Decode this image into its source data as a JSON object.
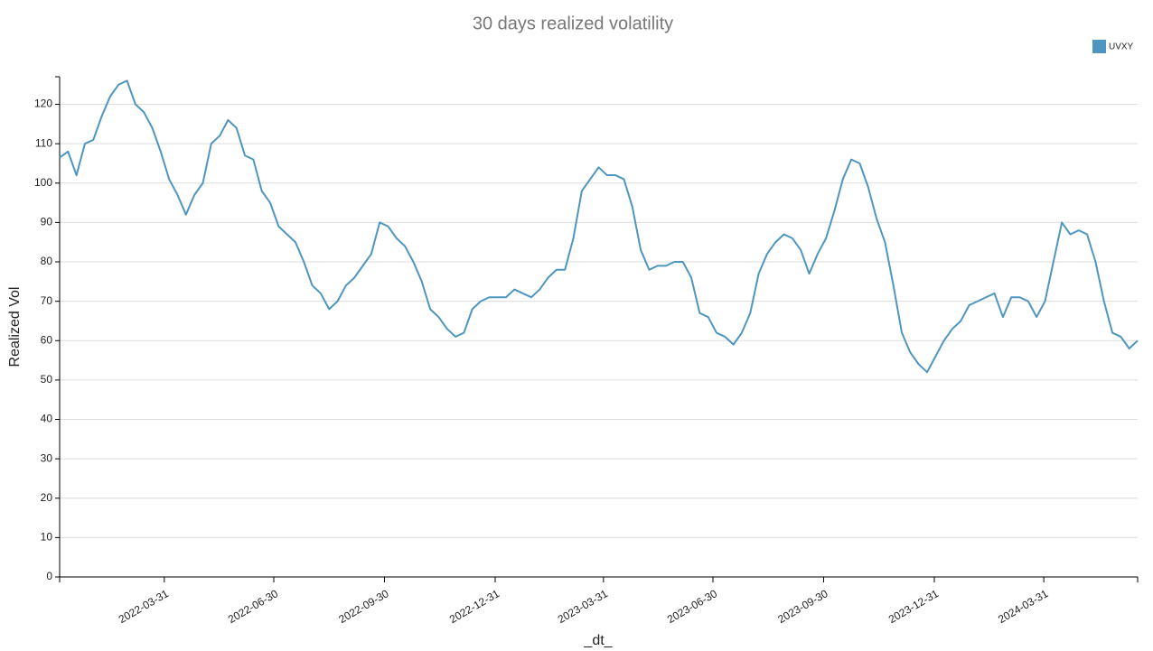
{
  "chart_data": {
    "type": "line",
    "title": "30 days realized volatility",
    "x_label": "_dt_",
    "y_label": "Realized Vol",
    "x": [
      "2022-01-03",
      "2022-01-10",
      "2022-01-17",
      "2022-01-24",
      "2022-01-31",
      "2022-02-07",
      "2022-02-14",
      "2022-02-21",
      "2022-02-28",
      "2022-03-07",
      "2022-03-14",
      "2022-03-21",
      "2022-03-28",
      "2022-04-04",
      "2022-04-11",
      "2022-04-18",
      "2022-04-25",
      "2022-05-02",
      "2022-05-09",
      "2022-05-16",
      "2022-05-23",
      "2022-05-30",
      "2022-06-06",
      "2022-06-13",
      "2022-06-20",
      "2022-06-27",
      "2022-07-04",
      "2022-07-11",
      "2022-07-18",
      "2022-07-25",
      "2022-08-01",
      "2022-08-08",
      "2022-08-15",
      "2022-08-22",
      "2022-08-29",
      "2022-09-05",
      "2022-09-12",
      "2022-09-19",
      "2022-09-26",
      "2022-10-03",
      "2022-10-10",
      "2022-10-17",
      "2022-10-24",
      "2022-10-31",
      "2022-11-07",
      "2022-11-14",
      "2022-11-21",
      "2022-11-28",
      "2022-12-05",
      "2022-12-12",
      "2022-12-19",
      "2022-12-26",
      "2023-01-02",
      "2023-01-09",
      "2023-01-16",
      "2023-01-23",
      "2023-01-30",
      "2023-02-06",
      "2023-02-13",
      "2023-02-20",
      "2023-02-27",
      "2023-03-06",
      "2023-03-13",
      "2023-03-20",
      "2023-03-27",
      "2023-04-03",
      "2023-04-10",
      "2023-04-17",
      "2023-04-24",
      "2023-05-01",
      "2023-05-08",
      "2023-05-15",
      "2023-05-22",
      "2023-05-29",
      "2023-06-05",
      "2023-06-12",
      "2023-06-19",
      "2023-06-26",
      "2023-07-03",
      "2023-07-10",
      "2023-07-17",
      "2023-07-24",
      "2023-07-31",
      "2023-08-07",
      "2023-08-14",
      "2023-08-21",
      "2023-08-28",
      "2023-09-04",
      "2023-09-11",
      "2023-09-18",
      "2023-09-25",
      "2023-10-02",
      "2023-10-09",
      "2023-10-16",
      "2023-10-23",
      "2023-10-30",
      "2023-11-06",
      "2023-11-13",
      "2023-11-20",
      "2023-11-27",
      "2023-12-04",
      "2023-12-11",
      "2023-12-18",
      "2023-12-25",
      "2024-01-01",
      "2024-01-08",
      "2024-01-15",
      "2024-01-22",
      "2024-01-29",
      "2024-02-05",
      "2024-02-12",
      "2024-02-19",
      "2024-02-26",
      "2024-03-04",
      "2024-03-11",
      "2024-03-18",
      "2024-03-25",
      "2024-04-01",
      "2024-04-08",
      "2024-04-15",
      "2024-04-22",
      "2024-04-29",
      "2024-05-06",
      "2024-05-13",
      "2024-05-20",
      "2024-05-27",
      "2024-06-03",
      "2024-06-10",
      "2024-06-17"
    ],
    "series": [
      {
        "name": "UVXY",
        "color": "#4e96c0",
        "values": [
          106.5,
          108,
          102,
          110,
          111,
          117,
          122,
          125,
          126,
          120,
          118,
          114,
          108,
          101,
          97,
          92,
          97,
          100,
          110,
          112,
          116,
          114,
          107,
          106,
          98,
          95,
          89,
          87,
          85,
          80,
          74,
          72,
          68,
          70,
          74,
          76,
          79,
          82,
          90,
          89,
          86,
          84,
          80,
          75,
          68,
          66,
          63,
          61,
          62,
          68,
          70,
          71,
          71,
          71,
          73,
          72,
          71,
          73,
          76,
          78,
          78,
          86,
          98,
          101,
          104,
          102,
          102,
          101,
          94,
          83,
          78,
          79,
          79,
          80,
          80,
          76,
          67,
          66,
          62,
          61,
          59,
          62,
          67,
          77,
          82,
          85,
          87,
          86,
          83,
          77,
          82,
          86,
          93,
          101,
          106,
          105,
          99,
          91,
          85,
          74,
          62,
          57,
          54,
          52,
          56,
          60,
          63,
          65,
          69,
          70,
          71,
          72,
          66,
          71,
          71,
          70,
          66,
          70,
          80,
          90,
          87,
          88,
          87,
          80,
          70,
          62,
          61,
          58,
          60
        ]
      }
    ],
    "xlim": [
      "2022-01-03",
      "2024-06-17"
    ],
    "xticks": [
      "2022-03-31",
      "2022-06-30",
      "2022-09-30",
      "2022-12-31",
      "2023-03-31",
      "2023-06-30",
      "2023-09-30",
      "2023-12-31",
      "2024-03-31"
    ],
    "ylim": [
      0,
      127
    ],
    "yticks": [
      0,
      10,
      20,
      30,
      40,
      50,
      60,
      70,
      80,
      90,
      100,
      110,
      120
    ],
    "grid": true,
    "legend": "top-right"
  }
}
